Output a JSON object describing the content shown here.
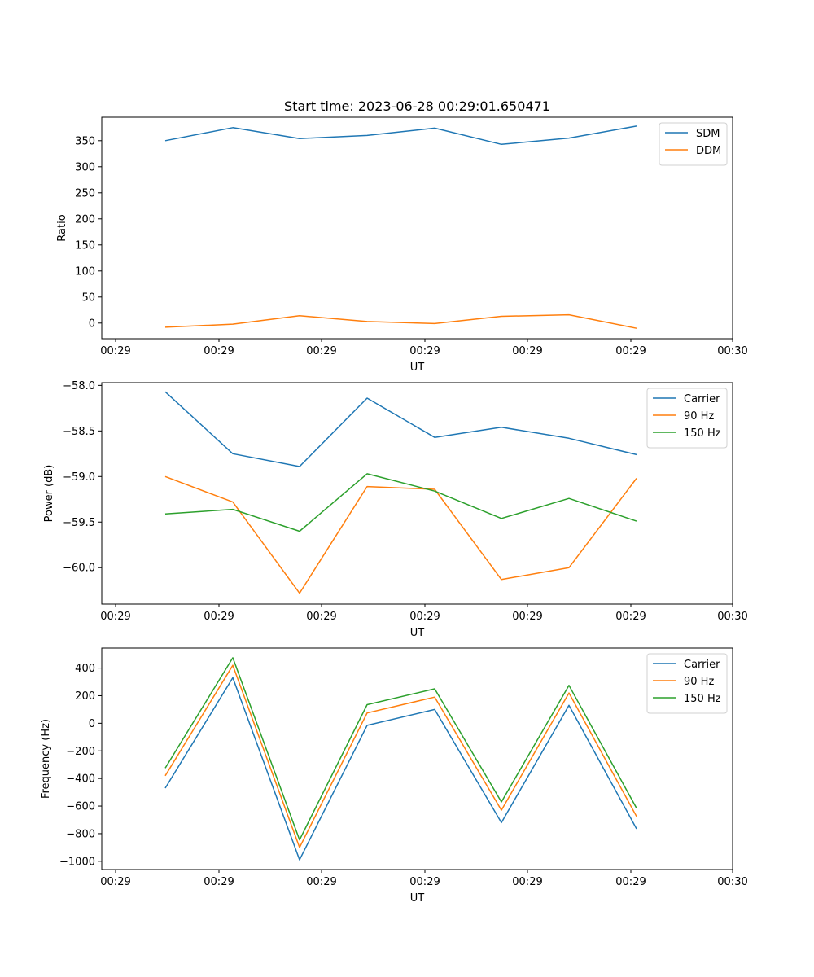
{
  "figure_title": "Start time: 2023-06-28 00:29:01.650471",
  "chart_data": [
    {
      "type": "line",
      "xlabel": "UT",
      "ylabel": "Ratio",
      "x_tick_labels": [
        "00:29",
        "00:29",
        "00:29",
        "00:29",
        "00:29",
        "00:29",
        "00:29",
        "00:30"
      ],
      "y_ticks": [
        0,
        50,
        100,
        150,
        200,
        250,
        300,
        350
      ],
      "ylim": [
        -30,
        395
      ],
      "legend_position": "upper right",
      "series": [
        {
          "name": "SDM",
          "color": "#1f77b4",
          "values": [
            350,
            375,
            354,
            360,
            374,
            343,
            355,
            378
          ]
        },
        {
          "name": "DDM",
          "color": "#ff7f0e",
          "values": [
            -8,
            -2,
            14,
            3,
            -1,
            13,
            16,
            -10
          ]
        }
      ]
    },
    {
      "type": "line",
      "xlabel": "UT",
      "ylabel": "Power (dB)",
      "x_tick_labels": [
        "00:29",
        "00:29",
        "00:29",
        "00:29",
        "00:29",
        "00:29",
        "00:29",
        "00:30"
      ],
      "y_ticks": [
        -60.0,
        -59.5,
        -59.0,
        -58.5,
        -58.0
      ],
      "ylim": [
        -60.4,
        -57.97
      ],
      "legend_position": "upper right",
      "series": [
        {
          "name": "Carrier",
          "color": "#1f77b4",
          "values": [
            -58.07,
            -58.75,
            -58.89,
            -58.14,
            -58.57,
            -58.46,
            -58.58,
            -58.76
          ]
        },
        {
          "name": "90 Hz",
          "color": "#ff7f0e",
          "values": [
            -59.0,
            -59.28,
            -60.28,
            -59.11,
            -59.14,
            -60.13,
            -60.0,
            -59.02
          ]
        },
        {
          "name": "150 Hz",
          "color": "#2ca02c",
          "values": [
            -59.41,
            -59.36,
            -59.6,
            -58.97,
            -59.16,
            -59.46,
            -59.24,
            -59.49
          ]
        }
      ]
    },
    {
      "type": "line",
      "xlabel": "UT",
      "ylabel": "Frequency (Hz)",
      "x_tick_labels": [
        "00:29",
        "00:29",
        "00:29",
        "00:29",
        "00:29",
        "00:29",
        "00:29",
        "00:30"
      ],
      "y_ticks": [
        -1000,
        -800,
        -600,
        -400,
        -200,
        0,
        200,
        400
      ],
      "ylim": [
        -1060,
        545
      ],
      "legend_position": "upper right",
      "series": [
        {
          "name": "Carrier",
          "color": "#1f77b4",
          "values": [
            -470,
            330,
            -990,
            -15,
            100,
            -720,
            130,
            -765
          ]
        },
        {
          "name": "90 Hz",
          "color": "#ff7f0e",
          "values": [
            -380,
            420,
            -900,
            75,
            190,
            -630,
            220,
            -675
          ]
        },
        {
          "name": "150 Hz",
          "color": "#2ca02c",
          "values": [
            -325,
            475,
            -845,
            135,
            250,
            -570,
            275,
            -615
          ]
        }
      ]
    }
  ]
}
